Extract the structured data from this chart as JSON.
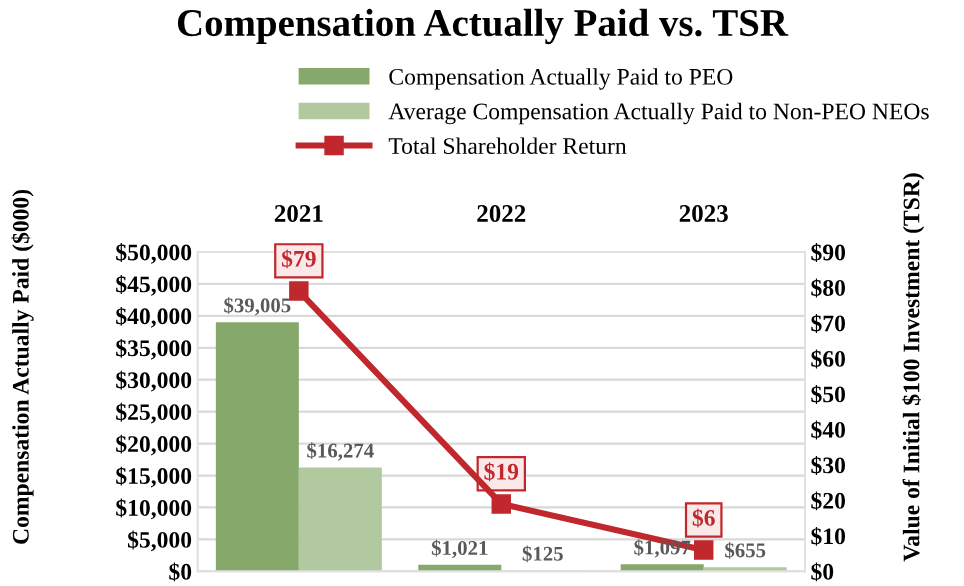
{
  "chart_data": {
    "type": "bar",
    "title": "Compensation Actually Paid vs. TSR",
    "categories": [
      "2021",
      "2022",
      "2023"
    ],
    "series": [
      {
        "name": "Compensation Actually Paid to PEO",
        "color": "#86a86b",
        "values": [
          39005,
          1021,
          1097
        ],
        "value_labels": [
          "$39,005",
          "$1,021",
          "$1,097"
        ]
      },
      {
        "name": "Average Compensation Actually Paid to Non-PEO NEOs",
        "color": "#b2c89e",
        "values": [
          16274,
          125,
          655
        ],
        "value_labels": [
          "$16,274",
          "$125",
          "$655"
        ]
      },
      {
        "name": "Total Shareholder Return",
        "type": "line",
        "axis": "y2",
        "color": "#c0282d",
        "marker": "square",
        "values": [
          79,
          19,
          6
        ],
        "value_labels": [
          "$79",
          "$19",
          "$6"
        ]
      }
    ],
    "ylabel": "Compensation Actually Paid ($000)",
    "y2label": "Value of Initial $100 Investment (TSR)",
    "ylim": [
      0,
      50000
    ],
    "yticks": [
      {
        "value": 0,
        "label": "$0"
      },
      {
        "value": 5000,
        "label": "$5,000"
      },
      {
        "value": 10000,
        "label": "$10,000"
      },
      {
        "value": 15000,
        "label": "$15,000"
      },
      {
        "value": 20000,
        "label": "$20,000"
      },
      {
        "value": 25000,
        "label": "$25,000"
      },
      {
        "value": 30000,
        "label": "$30,000"
      },
      {
        "value": 35000,
        "label": "$35,000"
      },
      {
        "value": 40000,
        "label": "$40,000"
      },
      {
        "value": 45000,
        "label": "$45,000"
      },
      {
        "value": 50000,
        "label": "$50,000"
      }
    ],
    "y2lim": [
      0,
      90
    ],
    "y2ticks": [
      {
        "value": 0,
        "label": "$0"
      },
      {
        "value": 10,
        "label": "$10"
      },
      {
        "value": 20,
        "label": "$20"
      },
      {
        "value": 30,
        "label": "$30"
      },
      {
        "value": 40,
        "label": "$40"
      },
      {
        "value": 50,
        "label": "$50"
      },
      {
        "value": 60,
        "label": "$60"
      },
      {
        "value": 70,
        "label": "$70"
      },
      {
        "value": 80,
        "label": "$80"
      },
      {
        "value": 90,
        "label": "$90"
      }
    ],
    "grid": "y",
    "legend": "top"
  }
}
